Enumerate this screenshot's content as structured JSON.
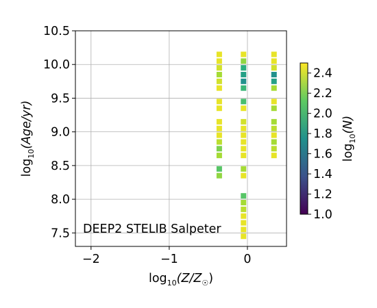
{
  "chart_data": {
    "type": "heatmap",
    "annotation": "DEEP2 STELIB Salpeter",
    "xlabel": {
      "prefix": "log",
      "sub": "10",
      "arg": "(Z/Z",
      "odot": "☉",
      "close": ")"
    },
    "ylabel": {
      "prefix": "log",
      "sub": "10",
      "arg": "(Age/yr)"
    },
    "xlim": [
      -2.2,
      0.5
    ],
    "ylim": [
      7.3,
      10.5
    ],
    "xticks": [
      -2,
      -1,
      0
    ],
    "xtick_labels": [
      "−2",
      "−1",
      "0"
    ],
    "yticks": [
      7.5,
      8.0,
      8.5,
      9.0,
      9.5,
      10.0,
      10.5
    ],
    "ytick_labels": [
      "7.5",
      "8.0",
      "8.5",
      "9.0",
      "9.5",
      "10.0",
      "10.5"
    ],
    "grid": true,
    "colorbar": {
      "label": {
        "prefix": "log",
        "sub": "10",
        "arg": "(N)"
      },
      "range": [
        1.0,
        2.5
      ],
      "colormap": "viridis",
      "ticks": [
        1.0,
        1.2,
        1.4,
        1.6,
        1.8,
        2.0,
        2.2,
        2.4
      ],
      "tick_labels": [
        "1.0",
        "1.2",
        "1.4",
        "1.6",
        "1.8",
        "2.0",
        "2.2",
        "2.4"
      ]
    },
    "cells": [
      {
        "x": -0.36,
        "y": 10.15,
        "v": 2.45
      },
      {
        "x": -0.36,
        "y": 10.05,
        "v": 2.45
      },
      {
        "x": -0.36,
        "y": 9.95,
        "v": 2.4
      },
      {
        "x": -0.36,
        "y": 9.85,
        "v": 2.3
      },
      {
        "x": -0.36,
        "y": 9.75,
        "v": 2.4
      },
      {
        "x": -0.36,
        "y": 9.65,
        "v": 2.45
      },
      {
        "x": -0.36,
        "y": 9.45,
        "v": 2.45
      },
      {
        "x": -0.36,
        "y": 9.35,
        "v": 2.45
      },
      {
        "x": -0.36,
        "y": 9.15,
        "v": 2.45
      },
      {
        "x": -0.36,
        "y": 9.05,
        "v": 2.45
      },
      {
        "x": -0.36,
        "y": 8.95,
        "v": 2.45
      },
      {
        "x": -0.36,
        "y": 8.85,
        "v": 2.35
      },
      {
        "x": -0.36,
        "y": 8.75,
        "v": 2.2
      },
      {
        "x": -0.36,
        "y": 8.65,
        "v": 2.3
      },
      {
        "x": -0.36,
        "y": 8.45,
        "v": 2.1
      },
      {
        "x": -0.36,
        "y": 8.35,
        "v": 2.25
      },
      {
        "x": -0.05,
        "y": 10.15,
        "v": 2.45
      },
      {
        "x": -0.05,
        "y": 10.05,
        "v": 2.25
      },
      {
        "x": -0.05,
        "y": 9.95,
        "v": 1.95
      },
      {
        "x": -0.05,
        "y": 9.85,
        "v": 1.85
      },
      {
        "x": -0.05,
        "y": 9.75,
        "v": 1.75
      },
      {
        "x": -0.05,
        "y": 9.65,
        "v": 2.0
      },
      {
        "x": -0.05,
        "y": 9.45,
        "v": 2.05
      },
      {
        "x": -0.05,
        "y": 9.35,
        "v": 2.45
      },
      {
        "x": -0.05,
        "y": 9.15,
        "v": 2.4
      },
      {
        "x": -0.05,
        "y": 9.05,
        "v": 2.45
      },
      {
        "x": -0.05,
        "y": 8.95,
        "v": 2.45
      },
      {
        "x": -0.05,
        "y": 8.85,
        "v": 2.45
      },
      {
        "x": -0.05,
        "y": 8.75,
        "v": 2.45
      },
      {
        "x": -0.05,
        "y": 8.65,
        "v": 2.45
      },
      {
        "x": -0.05,
        "y": 8.45,
        "v": 2.3
      },
      {
        "x": -0.05,
        "y": 8.35,
        "v": 2.45
      },
      {
        "x": -0.05,
        "y": 8.05,
        "v": 2.1
      },
      {
        "x": -0.05,
        "y": 7.95,
        "v": 2.3
      },
      {
        "x": -0.05,
        "y": 7.85,
        "v": 2.35
      },
      {
        "x": -0.05,
        "y": 7.75,
        "v": 2.45
      },
      {
        "x": -0.05,
        "y": 7.65,
        "v": 2.45
      },
      {
        "x": -0.05,
        "y": 7.55,
        "v": 2.45
      },
      {
        "x": -0.05,
        "y": 7.45,
        "v": 2.45
      },
      {
        "x": 0.34,
        "y": 10.15,
        "v": 2.45
      },
      {
        "x": 0.34,
        "y": 10.05,
        "v": 2.45
      },
      {
        "x": 0.34,
        "y": 9.95,
        "v": 2.4
      },
      {
        "x": 0.34,
        "y": 9.85,
        "v": 1.75
      },
      {
        "x": 0.34,
        "y": 9.75,
        "v": 1.85
      },
      {
        "x": 0.34,
        "y": 9.65,
        "v": 2.3
      },
      {
        "x": 0.34,
        "y": 9.45,
        "v": 2.45
      },
      {
        "x": 0.34,
        "y": 9.35,
        "v": 2.3
      },
      {
        "x": 0.34,
        "y": 9.15,
        "v": 2.3
      },
      {
        "x": 0.34,
        "y": 9.05,
        "v": 2.35
      },
      {
        "x": 0.34,
        "y": 8.95,
        "v": 2.45
      },
      {
        "x": 0.34,
        "y": 8.85,
        "v": 2.3
      },
      {
        "x": 0.34,
        "y": 8.75,
        "v": 2.35
      },
      {
        "x": 0.34,
        "y": 8.65,
        "v": 2.45
      }
    ]
  }
}
